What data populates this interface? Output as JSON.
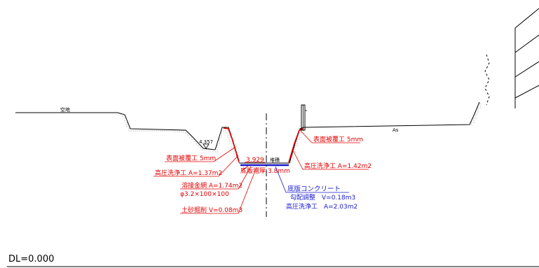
{
  "labels": {
    "left_ground": "空地",
    "right_ground": "As",
    "water_level": "4.357",
    "bed_level": "3.929",
    "right_bed_label": "堆積",
    "bed_raise": "底版増厚",
    "bed_raise_mm": "3.8mm",
    "left_surface_coat": "表面被覆工 5mm",
    "left_hp_wash": "高圧洗浄工 A=1.37m2",
    "wire_mesh": "溶接金網 A=1.74m2",
    "wire_mesh_spec": "φ3.2×100×100",
    "excavation": "土砂掘削 V=0.08m3",
    "right_surface_coat": "表面被覆工 5mm",
    "right_hp_wash": "高圧洗浄工 A=1.42m2",
    "slab_concrete": "底版コンクリート",
    "slope_adjust": "勾配調整　V=0.18m3",
    "slab_hp_wash": "高圧洗浄工　A=2.03m2",
    "datum": "DL=0.000"
  },
  "colors": {
    "line": "#000000",
    "red": "#e00000",
    "blue": "#1a1ad0",
    "centerline": "#000000",
    "stipple": "#555555"
  }
}
